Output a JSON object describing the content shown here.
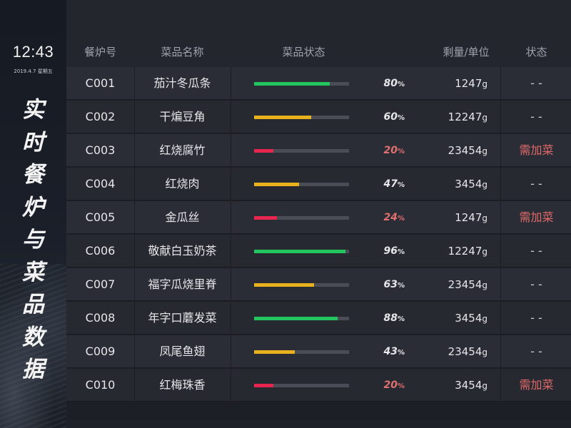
{
  "sidebar": {
    "time": "12:43",
    "date": "2019.4.7 星期五",
    "title_chars": [
      "实",
      "时",
      "餐",
      "炉",
      "与",
      "菜",
      "品",
      "数",
      "据"
    ]
  },
  "columns": {
    "stove": "餐炉号",
    "dish": "菜品名称",
    "dish_status": "菜品状态",
    "remaining": "剩量/单位",
    "status": "状态"
  },
  "colors": {
    "green": "#22c55e",
    "yellow": "#e8b21f",
    "red": "#e8254e",
    "alert_text": "#e06a6a",
    "red_pct_text": "#e07070"
  },
  "rows": [
    {
      "id": "C001",
      "name": "茄汁冬瓜条",
      "percent": 80,
      "percent_unit": "%",
      "qty": "1247",
      "qty_unit": "g",
      "status": "- -",
      "level": "green"
    },
    {
      "id": "C002",
      "name": "干煸豆角",
      "percent": 60,
      "percent_unit": "%",
      "qty": "12247",
      "qty_unit": "g",
      "status": "- -",
      "level": "yellow"
    },
    {
      "id": "C003",
      "name": "红烧腐竹",
      "percent": 20,
      "percent_unit": "%",
      "qty": "23454",
      "qty_unit": "g",
      "status": "需加菜",
      "level": "red"
    },
    {
      "id": "C004",
      "name": "红烧肉",
      "percent": 47,
      "percent_unit": "%",
      "qty": "3454",
      "qty_unit": "g",
      "status": "- -",
      "level": "yellow"
    },
    {
      "id": "C005",
      "name": "金瓜丝",
      "percent": 24,
      "percent_unit": "%",
      "qty": "1247",
      "qty_unit": "g",
      "status": "需加菜",
      "level": "red"
    },
    {
      "id": "C006",
      "name": "敬献白玉奶茶",
      "percent": 96,
      "percent_unit": "%",
      "qty": "12247",
      "qty_unit": "g",
      "status": "- -",
      "level": "green"
    },
    {
      "id": "C007",
      "name": "福字瓜烧里脊",
      "percent": 63,
      "percent_unit": "%",
      "qty": "23454",
      "qty_unit": "g",
      "status": "- -",
      "level": "yellow"
    },
    {
      "id": "C008",
      "name": "年字口蘑发菜",
      "percent": 88,
      "percent_unit": "%",
      "qty": "3454",
      "qty_unit": "g",
      "status": "- -",
      "level": "green"
    },
    {
      "id": "C009",
      "name": "凤尾鱼翅",
      "percent": 43,
      "percent_unit": "%",
      "qty": "23454",
      "qty_unit": "g",
      "status": "- -",
      "level": "yellow"
    },
    {
      "id": "C010",
      "name": "红梅珠香",
      "percent": 20,
      "percent_unit": "%",
      "qty": "3454",
      "qty_unit": "g",
      "status": "需加菜",
      "level": "red"
    }
  ]
}
